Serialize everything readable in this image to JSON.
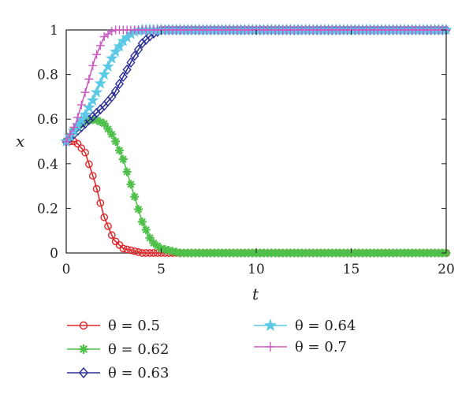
{
  "chart_data": {
    "type": "line",
    "title": "",
    "xlabel": "t",
    "ylabel": "x",
    "xlim": [
      0,
      20
    ],
    "ylim": [
      0,
      1
    ],
    "xticks": [
      0,
      5,
      10,
      15,
      20
    ],
    "yticks": [
      0,
      0.2,
      0.4,
      0.6,
      0.8,
      1
    ],
    "xtick_labels": [
      "0",
      "5",
      "10",
      "15",
      "20"
    ],
    "ytick_labels": [
      "0",
      "0.2",
      "0.4",
      "0.6",
      "0.8",
      "1"
    ],
    "grid": false,
    "legend_position": "bottom",
    "series": [
      {
        "name": "θ = 0.5",
        "color": "#e0282b",
        "marker": "circle",
        "x": [
          0,
          0.5,
          1,
          1.5,
          2,
          2.5,
          3,
          3.5,
          4,
          5,
          6,
          8,
          10,
          12,
          14,
          16,
          18,
          20
        ],
        "y": [
          0.5,
          0.5,
          0.45,
          0.32,
          0.16,
          0.06,
          0.02,
          0.01,
          0.0,
          0.0,
          0.0,
          0.0,
          0.0,
          0.0,
          0.0,
          0.0,
          0.0,
          0.0
        ]
      },
      {
        "name": "θ = 0.62",
        "color": "#4fc14a",
        "marker": "asterisk",
        "x": [
          0,
          0.5,
          1,
          1.5,
          2,
          2.5,
          3,
          3.5,
          4,
          4.5,
          5,
          5.5,
          6,
          7,
          8,
          10,
          12,
          14,
          16,
          18,
          20
        ],
        "y": [
          0.5,
          0.56,
          0.59,
          0.6,
          0.58,
          0.52,
          0.42,
          0.28,
          0.14,
          0.05,
          0.02,
          0.01,
          0.0,
          0.0,
          0.0,
          0.0,
          0.0,
          0.0,
          0.0,
          0.0,
          0.0
        ]
      },
      {
        "name": "θ = 0.63",
        "color": "#2b2f96",
        "marker": "diamond",
        "x": [
          0,
          0.5,
          1,
          1.5,
          2,
          2.5,
          3,
          3.5,
          4,
          4.5,
          5,
          6,
          8,
          10,
          12,
          14,
          16,
          18,
          20
        ],
        "y": [
          0.5,
          0.54,
          0.58,
          0.62,
          0.66,
          0.71,
          0.79,
          0.87,
          0.94,
          0.98,
          1.0,
          1.0,
          1.0,
          1.0,
          1.0,
          1.0,
          1.0,
          1.0,
          1.0
        ]
      },
      {
        "name": "θ = 0.64",
        "color": "#5bc8e6",
        "marker": "star",
        "x": [
          0,
          0.5,
          1,
          1.5,
          2,
          2.5,
          3,
          3.5,
          4,
          5,
          6,
          8,
          10,
          12,
          14,
          16,
          18,
          20
        ],
        "y": [
          0.5,
          0.56,
          0.62,
          0.7,
          0.8,
          0.89,
          0.95,
          0.99,
          1.0,
          1.0,
          1.0,
          1.0,
          1.0,
          1.0,
          1.0,
          1.0,
          1.0,
          1.0
        ]
      },
      {
        "name": "θ = 0.7",
        "color": "#c95bc2",
        "marker": "plus",
        "x": [
          0,
          0.5,
          1,
          1.5,
          2,
          2.5,
          3,
          3.5,
          4,
          5,
          6,
          8,
          10,
          12,
          14,
          16,
          18,
          20
        ],
        "y": [
          0.5,
          0.58,
          0.72,
          0.87,
          0.97,
          1.0,
          1.0,
          1.0,
          1.0,
          1.0,
          1.0,
          1.0,
          1.0,
          1.0,
          1.0,
          1.0,
          1.0,
          1.0
        ]
      }
    ]
  }
}
